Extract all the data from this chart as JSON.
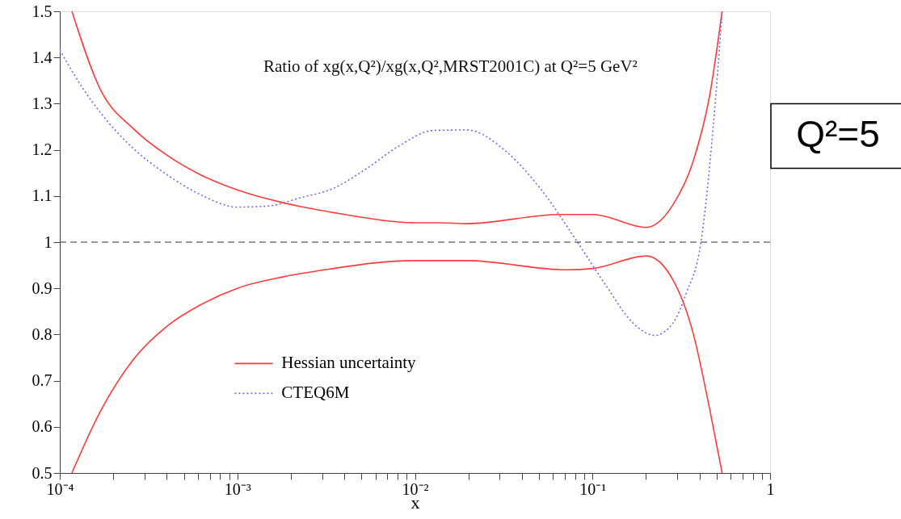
{
  "chart_data": {
    "type": "line",
    "title": "Ratio of xg(x,Q²)/xg(x,Q²,MRST2001C) at Q²=5 GeV²",
    "xlabel": "x",
    "log": "x",
    "xlim": [
      0.0001,
      1
    ],
    "ylim": [
      0.5,
      1.5
    ],
    "xticks": [
      {
        "value": 0.0001,
        "label": "10⁻⁴"
      },
      {
        "value": 0.0002,
        "label": null
      },
      {
        "value": 0.0003,
        "label": null
      },
      {
        "value": 0.0004,
        "label": null
      },
      {
        "value": 0.0005,
        "label": null
      },
      {
        "value": 0.0006,
        "label": null
      },
      {
        "value": 0.0007,
        "label": null
      },
      {
        "value": 0.0008,
        "label": null
      },
      {
        "value": 0.0009,
        "label": null
      },
      {
        "value": 0.001,
        "label": "10⁻³"
      },
      {
        "value": 0.002,
        "label": null
      },
      {
        "value": 0.003,
        "label": null
      },
      {
        "value": 0.004,
        "label": null
      },
      {
        "value": 0.005,
        "label": null
      },
      {
        "value": 0.006,
        "label": null
      },
      {
        "value": 0.007,
        "label": null
      },
      {
        "value": 0.008,
        "label": null
      },
      {
        "value": 0.009,
        "label": null
      },
      {
        "value": 0.01,
        "label": "10⁻²"
      },
      {
        "value": 0.02,
        "label": null
      },
      {
        "value": 0.03,
        "label": null
      },
      {
        "value": 0.04,
        "label": null
      },
      {
        "value": 0.05,
        "label": null
      },
      {
        "value": 0.06,
        "label": null
      },
      {
        "value": 0.07,
        "label": null
      },
      {
        "value": 0.08,
        "label": null
      },
      {
        "value": 0.09,
        "label": null
      },
      {
        "value": 0.1,
        "label": "10⁻¹"
      },
      {
        "value": 0.2,
        "label": null
      },
      {
        "value": 0.3,
        "label": null
      },
      {
        "value": 0.4,
        "label": null
      },
      {
        "value": 0.5,
        "label": null
      },
      {
        "value": 0.6,
        "label": null
      },
      {
        "value": 0.7,
        "label": null
      },
      {
        "value": 0.8,
        "label": null
      },
      {
        "value": 0.9,
        "label": null
      },
      1
    ],
    "yticks": [
      0.5,
      0.6,
      0.7,
      0.8,
      0.9,
      1,
      1.1,
      1.2,
      1.3,
      1.4,
      1.5
    ],
    "grid": false,
    "legend": "bottom left",
    "marker": "none",
    "ref_lines": [
      {
        "axis": "y",
        "value": 1,
        "color": "#333333",
        "line_style": "dashed"
      }
    ],
    "annotations": [
      "Q²=5"
    ],
    "series": [
      {
        "name": "Hessian uncertainty",
        "color": "#ff3b3b",
        "line_style": "solid",
        "x": [
          0.000117,
          0.000169,
          0.000261,
          0.000402,
          0.000619,
          0.001,
          0.00182,
          0.00349,
          0.00667,
          0.01,
          0.0139,
          0.0196,
          0.0655,
          0.101,
          0.201,
          0.284,
          0.368,
          0.456,
          0.537
        ],
        "values": [
          1.5,
          1.331,
          1.245,
          1.188,
          1.146,
          1.113,
          1.085,
          1.064,
          1.047,
          1.042,
          1.042,
          1.04,
          1.06,
          1.06,
          1.032,
          1.081,
          1.174,
          1.316,
          1.5
        ]
      },
      {
        "color": "#ff3b3b",
        "line_style": "solid",
        "x": [
          0.000117,
          0.000169,
          0.000261,
          0.000402,
          0.000619,
          0.001,
          0.00182,
          0.00349,
          0.00667,
          0.01,
          0.0139,
          0.0196,
          0.0714,
          0.101,
          0.201,
          0.284,
          0.368,
          0.456,
          0.537
        ],
        "values": [
          0.5,
          0.633,
          0.747,
          0.818,
          0.864,
          0.9,
          0.925,
          0.943,
          0.957,
          0.96,
          0.96,
          0.96,
          0.94,
          0.943,
          0.97,
          0.918,
          0.804,
          0.64,
          0.5
        ]
      },
      {
        "name": "CTEQ6M",
        "color": "#6a6aff",
        "line_style": "dotted",
        "x": [
          0.0001,
          0.000136,
          0.000169,
          0.000261,
          0.000402,
          0.000619,
          0.001,
          0.00147,
          0.00226,
          0.00349,
          0.00537,
          0.00826,
          0.0127,
          0.0196,
          0.0329,
          0.0506,
          0.0813,
          0.12,
          0.169,
          0.224,
          0.284,
          0.337,
          0.409,
          0.477,
          0.537
        ],
        "values": [
          1.416,
          1.331,
          1.281,
          1.202,
          1.146,
          1.103,
          1.076,
          1.078,
          1.096,
          1.117,
          1.16,
          1.21,
          1.242,
          1.243,
          1.195,
          1.117,
          1.003,
          0.904,
          0.825,
          0.798,
          0.825,
          0.889,
          1.003,
          1.245,
          1.5
        ]
      }
    ]
  }
}
